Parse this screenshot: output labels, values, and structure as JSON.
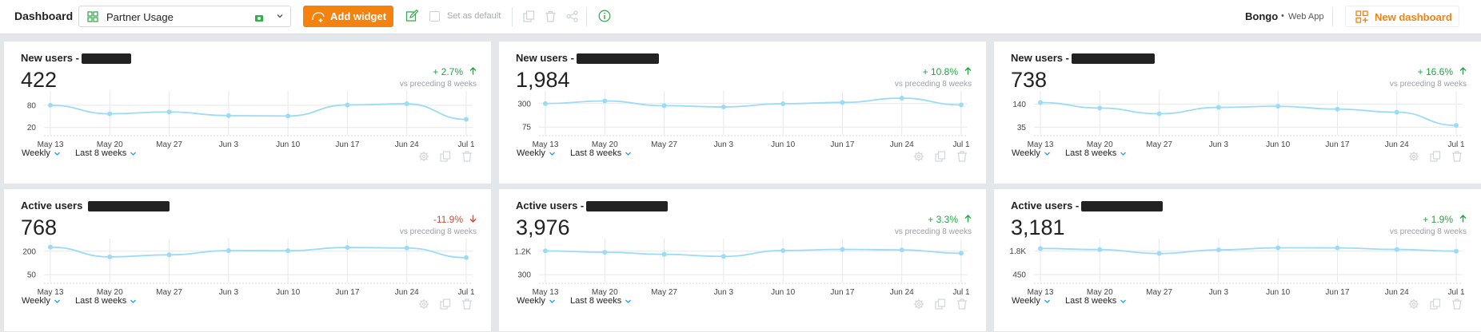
{
  "topbar": {
    "title": "Dashboard",
    "dashboard_select": "Partner Usage",
    "add_widget": "Add widget",
    "set_default": "Set as default",
    "org_name": "Bongo",
    "org_dot": "•",
    "org_app": "Web App",
    "new_dashboard": "New dashboard"
  },
  "colors": {
    "accent": "#f4820e",
    "up": "#20a542",
    "down": "#e5432c",
    "line": "#9bdcf5"
  },
  "cards": [
    {
      "title": "New users -",
      "value": "422",
      "delta": "+ 2.7%",
      "direction": "up",
      "vs": "vs preceding 8 weeks",
      "interval": "Weekly",
      "range": "Last 8 weeks",
      "chart_data": {
        "type": "line",
        "x": [
          "May 13",
          "May 20",
          "May 27",
          "Jun 3",
          "Jun 10",
          "Jun 17",
          "Jun 24",
          "Jul 1"
        ],
        "y_ticks": [
          80,
          20
        ],
        "y_tick_labels": [
          "80",
          "20"
        ],
        "ylim": [
          0,
          110
        ],
        "values": [
          80,
          57,
          62,
          52,
          51,
          81,
          84,
          42
        ]
      }
    },
    {
      "title": "New users -",
      "value": "1,984",
      "delta": "+ 10.8%",
      "direction": "up",
      "vs": "vs preceding 8 weeks",
      "interval": "Weekly",
      "range": "Last 8 weeks",
      "chart_data": {
        "type": "line",
        "x": [
          "May 13",
          "May 20",
          "May 27",
          "Jun 3",
          "Jun 10",
          "Jun 17",
          "Jun 24",
          "Jul 1"
        ],
        "y_ticks": [
          300,
          75
        ],
        "y_tick_labels": [
          "300",
          "75"
        ],
        "ylim": [
          0,
          390
        ],
        "values": [
          300,
          325,
          280,
          268,
          298,
          311,
          352,
          287
        ]
      }
    },
    {
      "title": "New users -",
      "value": "738",
      "delta": "+ 16.6%",
      "direction": "up",
      "vs": "vs preceding 8 weeks",
      "interval": "Weekly",
      "range": "Last 8 weeks",
      "chart_data": {
        "type": "line",
        "x": [
          "May 13",
          "May 20",
          "May 27",
          "Jun 3",
          "Jun 10",
          "Jun 17",
          "Jun 24",
          "Jul 1"
        ],
        "y_ticks": [
          140,
          35
        ],
        "y_tick_labels": [
          "140",
          "35"
        ],
        "ylim": [
          0,
          185
        ],
        "values": [
          147,
          122,
          96,
          125,
          130,
          117,
          103,
          43
        ]
      }
    },
    {
      "title": "Active users",
      "value": "768",
      "delta": "-11.9%",
      "direction": "down",
      "vs": "vs preceding 8 weeks",
      "interval": "Weekly",
      "range": "Last 8 weeks",
      "chart_data": {
        "type": "line",
        "x": [
          "May 13",
          "May 20",
          "May 27",
          "Jun 3",
          "Jun 10",
          "Jun 17",
          "Jun 24",
          "Jul 1"
        ],
        "y_ticks": [
          200,
          50
        ],
        "y_tick_labels": [
          "200",
          "50"
        ],
        "ylim": [
          0,
          260
        ],
        "values": [
          226,
          164,
          177,
          204,
          203,
          224,
          220,
          159
        ]
      }
    },
    {
      "title": "Active users -",
      "value": "3,976",
      "delta": "+ 3.3%",
      "direction": "up",
      "vs": "vs preceding 8 weeks",
      "interval": "Weekly",
      "range": "Last 8 weeks",
      "chart_data": {
        "type": "line",
        "x": [
          "May 13",
          "May 20",
          "May 27",
          "Jun 3",
          "Jun 10",
          "Jun 17",
          "Jun 24",
          "Jul 1"
        ],
        "y_ticks": [
          1200,
          300
        ],
        "y_tick_labels": [
          "1.2K",
          "300"
        ],
        "ylim": [
          0,
          1560
        ],
        "values": [
          1211,
          1159,
          1081,
          1001,
          1225,
          1270,
          1250,
          1120
        ]
      }
    },
    {
      "title": "Active users -",
      "value": "3,181",
      "delta": "+ 1.9%",
      "direction": "up",
      "vs": "vs preceding 8 weeks",
      "interval": "Weekly",
      "range": "Last 8 weeks",
      "chart_data": {
        "type": "line",
        "x": [
          "May 13",
          "May 20",
          "May 27",
          "Jun 3",
          "Jun 10",
          "Jun 17",
          "Jun 24",
          "Jul 1"
        ],
        "y_ticks": [
          1800,
          450
        ],
        "y_tick_labels": [
          "1.8K",
          "450"
        ],
        "ylim": [
          0,
          2330
        ],
        "values": [
          1950,
          1883,
          1660,
          1867,
          1989,
          1983,
          1892,
          1795
        ]
      }
    }
  ]
}
